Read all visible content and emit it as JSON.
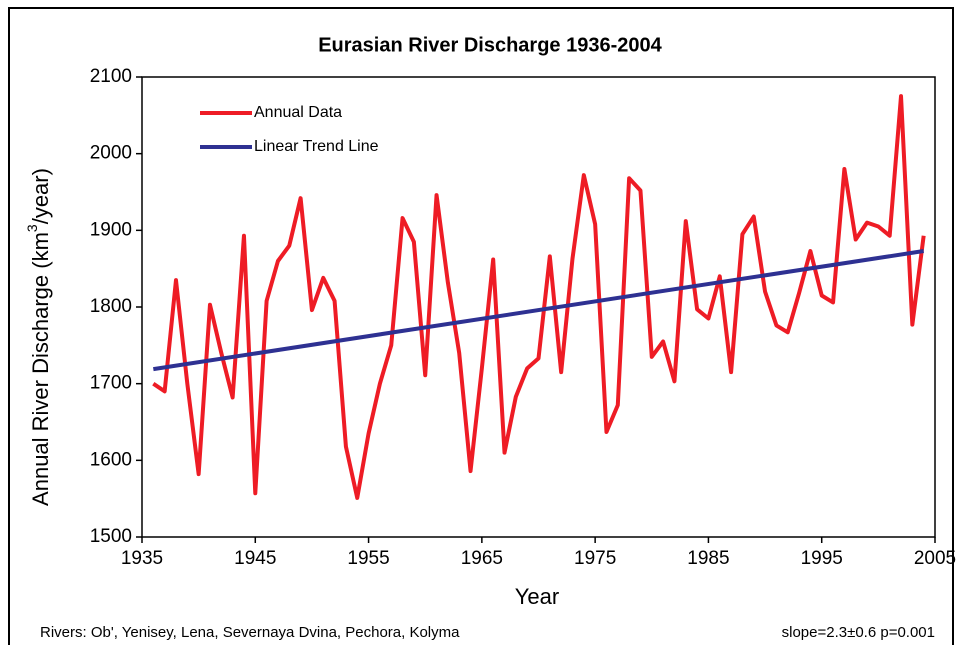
{
  "chart_data": {
    "type": "line",
    "title": "Eurasian River Discharge 1936-2004",
    "x_label": "Year",
    "y_label": [
      "Annual River Discharge (km",
      "3",
      "/year)"
    ],
    "footnote_left": "Rivers: Ob', Yenisey, Lena, Severnaya Dvina, Pechora, Kolyma",
    "footnote_right": "slope=2.3±0.6  p=0.001",
    "xlim": [
      1935,
      2005
    ],
    "xticks": [
      1935,
      1945,
      1955,
      1965,
      1975,
      1985,
      1995,
      2005
    ],
    "ylim": [
      1500,
      2100
    ],
    "yticks": [
      1500,
      1600,
      1700,
      1800,
      1900,
      2000,
      2100
    ],
    "grid": false,
    "legend": "top-left",
    "series": [
      {
        "name": "Annual Data",
        "color": "#ee1c25",
        "x": [
          1936,
          1937,
          1938,
          1939,
          1940,
          1941,
          1942,
          1943,
          1944,
          1945,
          1946,
          1947,
          1948,
          1949,
          1950,
          1951,
          1952,
          1953,
          1954,
          1955,
          1956,
          1957,
          1958,
          1959,
          1960,
          1961,
          1962,
          1963,
          1964,
          1965,
          1966,
          1967,
          1968,
          1969,
          1970,
          1971,
          1972,
          1973,
          1974,
          1975,
          1976,
          1977,
          1978,
          1979,
          1980,
          1981,
          1982,
          1983,
          1984,
          1985,
          1986,
          1987,
          1988,
          1989,
          1990,
          1991,
          1992,
          1993,
          1994,
          1995,
          1996,
          1997,
          1998,
          1999,
          2000,
          2001,
          2002,
          2003,
          2004
        ],
        "values": [
          1700,
          1690,
          1835,
          1700,
          1582,
          1803,
          1740,
          1682,
          1893,
          1557,
          1808,
          1860,
          1880,
          1942,
          1796,
          1838,
          1808,
          1618,
          1551,
          1635,
          1700,
          1750,
          1916,
          1885,
          1711,
          1946,
          1832,
          1740,
          1586,
          1720,
          1862,
          1610,
          1683,
          1720,
          1733,
          1866,
          1715,
          1863,
          1972,
          1908,
          1637,
          1672,
          1968,
          1952,
          1735,
          1755,
          1703,
          1912,
          1797,
          1785,
          1840,
          1715,
          1895,
          1918,
          1820,
          1776,
          1767,
          1818,
          1873,
          1815,
          1806,
          1980,
          1888,
          1910,
          1905,
          1893,
          2075,
          1777,
          1893
        ]
      },
      {
        "name": "Linear Trend Line",
        "color": "#2e3192",
        "x": [
          1936,
          2004
        ],
        "values": [
          1719,
          1873
        ]
      }
    ]
  }
}
